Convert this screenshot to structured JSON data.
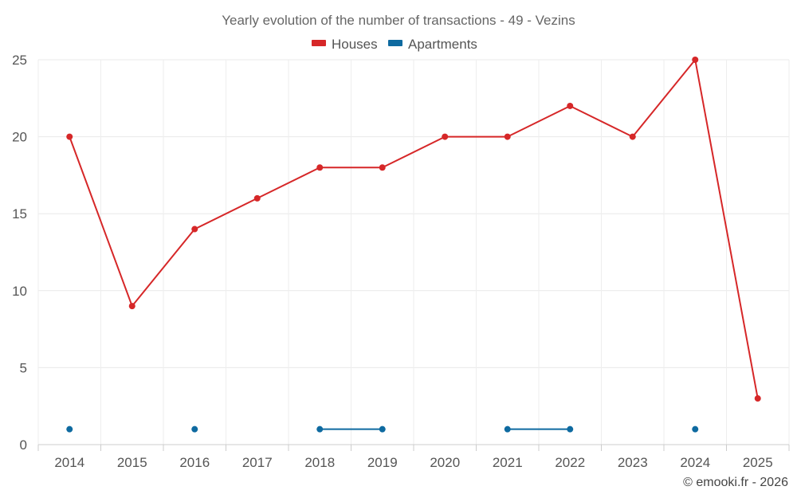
{
  "chart_data": {
    "type": "line",
    "title": "Yearly evolution of the number of transactions - 49 - Vezins",
    "categories": [
      "2014",
      "2015",
      "2016",
      "2017",
      "2018",
      "2019",
      "2020",
      "2021",
      "2022",
      "2023",
      "2024",
      "2025"
    ],
    "series": [
      {
        "name": "Houses",
        "color": "#d62728",
        "values": [
          20,
          9,
          14,
          16,
          18,
          18,
          20,
          20,
          22,
          20,
          25,
          3
        ]
      },
      {
        "name": "Apartments",
        "color": "#0e6aa0",
        "values": [
          1,
          null,
          1,
          null,
          1,
          1,
          null,
          1,
          1,
          null,
          1,
          null
        ]
      }
    ],
    "ylim": [
      0,
      25
    ],
    "yticks": [
      0,
      5,
      10,
      15,
      20,
      25
    ],
    "xlabel": "",
    "ylabel": "",
    "grid": true,
    "legend_position": "top-center"
  },
  "credit": "© emooki.fr - 2026"
}
